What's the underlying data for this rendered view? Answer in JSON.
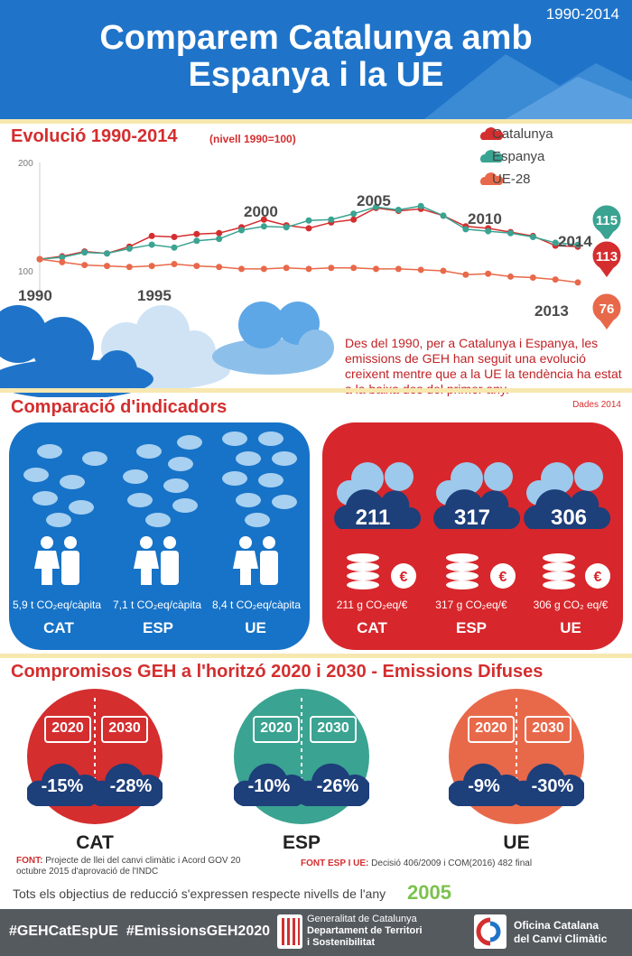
{
  "header": {
    "years": "1990-2014",
    "title_line1": "Comparem Catalunya amb",
    "title_line2": "Espanya i la UE"
  },
  "evolution": {
    "title": "Evolució 1990-2014",
    "subtitle": "(nivell 1990=100)",
    "legend": [
      {
        "label": "Catalunya",
        "color": "#d42e2f"
      },
      {
        "label": "Espanya",
        "color": "#3aa391"
      },
      {
        "label": "UE-28",
        "color": "#e8694a"
      }
    ],
    "year_labels": [
      "1990",
      "1995",
      "2000",
      "2005",
      "2010",
      "2014",
      "2013"
    ],
    "y_ticks": [
      "200",
      "100"
    ],
    "end_values": {
      "espanya": "115",
      "catalunya": "113",
      "ue": "76"
    },
    "description": "Des del 1990, per a Catalunya i Espanya, les emissions de GEH han seguit una evolució creixent mentre que a la UE la tendència ha estat a la baixa des del primer any."
  },
  "chart_data": {
    "type": "line",
    "ylim": [
      60,
      200
    ],
    "x": [
      1990,
      1991,
      1992,
      1993,
      1994,
      1995,
      1996,
      1997,
      1998,
      1999,
      2000,
      2001,
      2002,
      2003,
      2004,
      2005,
      2006,
      2007,
      2008,
      2009,
      2010,
      2011,
      2012,
      2013,
      2014
    ],
    "series": [
      {
        "name": "Catalunya",
        "color": "#d42e2f",
        "values": [
          100,
          103,
          108,
          106,
          113,
          124,
          123,
          126,
          127,
          133,
          141,
          135,
          132,
          138,
          141,
          153,
          150,
          152,
          145,
          134,
          132,
          128,
          124,
          114,
          113
        ]
      },
      {
        "name": "Espanya",
        "color": "#3aa391",
        "values": [
          100,
          102,
          107,
          106,
          111,
          115,
          112,
          119,
          121,
          130,
          134,
          133,
          140,
          141,
          147,
          154,
          151,
          155,
          145,
          131,
          129,
          127,
          123,
          117,
          115
        ]
      },
      {
        "name": "UE-28",
        "color": "#e8694a",
        "values": [
          100,
          97,
          94,
          93,
          92,
          93,
          95,
          93,
          92,
          90,
          90,
          91,
          90,
          91,
          91,
          90,
          90,
          89,
          88,
          84,
          85,
          82,
          81,
          79,
          76
        ]
      }
    ]
  },
  "comparison": {
    "title": "Comparació d'indicadors",
    "date": "Dades 2014",
    "per_capita": [
      {
        "value": "5,9 t CO₂eq/càpita",
        "region": "CAT"
      },
      {
        "value": "7,1 t CO₂eq/càpita",
        "region": "ESP"
      },
      {
        "value": "8,4 t CO₂eq/càpita",
        "region": "UE"
      }
    ],
    "intensity": [
      {
        "badge": "211",
        "value": "211 g CO₂eq/€",
        "region": "CAT"
      },
      {
        "badge": "317",
        "value": "317 g CO₂eq/€",
        "region": "ESP"
      },
      {
        "badge": "306",
        "value": "306 g CO₂ eq/€",
        "region": "UE"
      }
    ]
  },
  "goals": {
    "title": "Compromisos GEH a l'horitzó 2020 i 2030 - Emissions Difuses",
    "year_a": "2020",
    "year_b": "2030",
    "items": [
      {
        "region": "CAT",
        "p2020": "-15%",
        "p2030": "-28%",
        "color": "#d42e2f"
      },
      {
        "region": "ESP",
        "p2020": "-10%",
        "p2030": "-26%",
        "color": "#3aa391"
      },
      {
        "region": "UE",
        "p2020": "-9%",
        "p2030": "-30%",
        "color": "#e8694a"
      }
    ],
    "source1_label": "FONT:",
    "source1_text": "Projecte de llei del canvi climàtic i Acord GOV 20 octubre 2015 d'aprovació de l'INDC",
    "source2_label": "FONT ESP I UE:",
    "source2_text": "Decisió 406/2009 i COM(2016) 482 final",
    "base_text": "Tots els objectius de reducció s'expressen respecte nivells de l'any",
    "base_year": "2005"
  },
  "footer": {
    "tags": "#GEHCatEspUE  #EmissionsGEH2020",
    "gen_line1": "Generalitat de Catalunya",
    "gen_line2": "Departament de Territori",
    "gen_line3": "i Sostenibilitat",
    "occ_line1": "Oficina Catalana",
    "occ_line2": "del Canvi Climàtic"
  }
}
